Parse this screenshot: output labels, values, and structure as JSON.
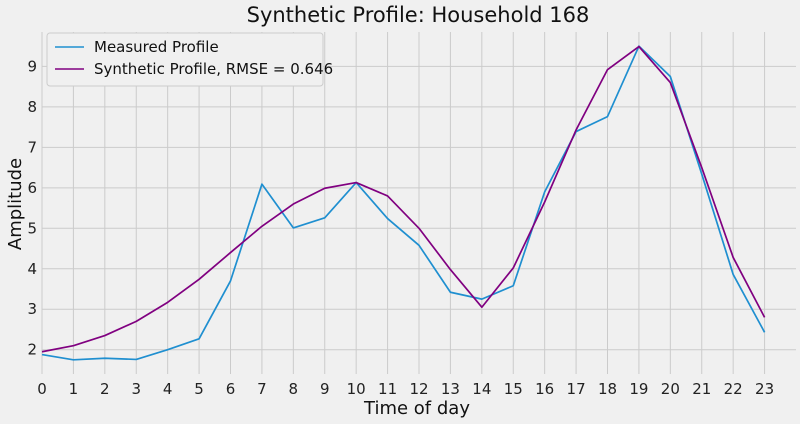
{
  "chart_data": {
    "type": "line",
    "title": "Synthetic Profile: Household 168",
    "xlabel": "Time of day",
    "ylabel": "Amplitude",
    "x": [
      0,
      1,
      2,
      3,
      4,
      5,
      6,
      7,
      8,
      9,
      10,
      11,
      12,
      13,
      14,
      15,
      16,
      17,
      18,
      19,
      20,
      21,
      22,
      23
    ],
    "xlim": [
      0,
      24
    ],
    "ylim": [
      1.4,
      9.85
    ],
    "yticks": [
      2,
      3,
      4,
      5,
      6,
      7,
      8,
      9
    ],
    "grid": true,
    "legend_position": "top-left",
    "background": "#f0f0f0",
    "series": [
      {
        "name": "Measured Profile",
        "color": "#1f8fd0",
        "values": [
          1.88,
          1.75,
          1.79,
          1.76,
          2.0,
          2.27,
          3.7,
          6.09,
          5.01,
          5.26,
          6.13,
          5.24,
          4.58,
          3.42,
          3.25,
          3.58,
          5.9,
          7.39,
          7.76,
          9.5,
          8.75,
          6.34,
          3.86,
          2.43
        ]
      },
      {
        "name": "Synthetic Profile, RMSE = 0.646",
        "color": "#800080",
        "values": [
          1.95,
          2.1,
          2.35,
          2.7,
          3.17,
          3.74,
          4.4,
          5.05,
          5.6,
          5.99,
          6.13,
          5.8,
          5.0,
          3.98,
          3.05,
          4.02,
          5.65,
          7.43,
          8.92,
          9.49,
          8.6,
          6.5,
          4.28,
          2.8
        ]
      }
    ]
  }
}
